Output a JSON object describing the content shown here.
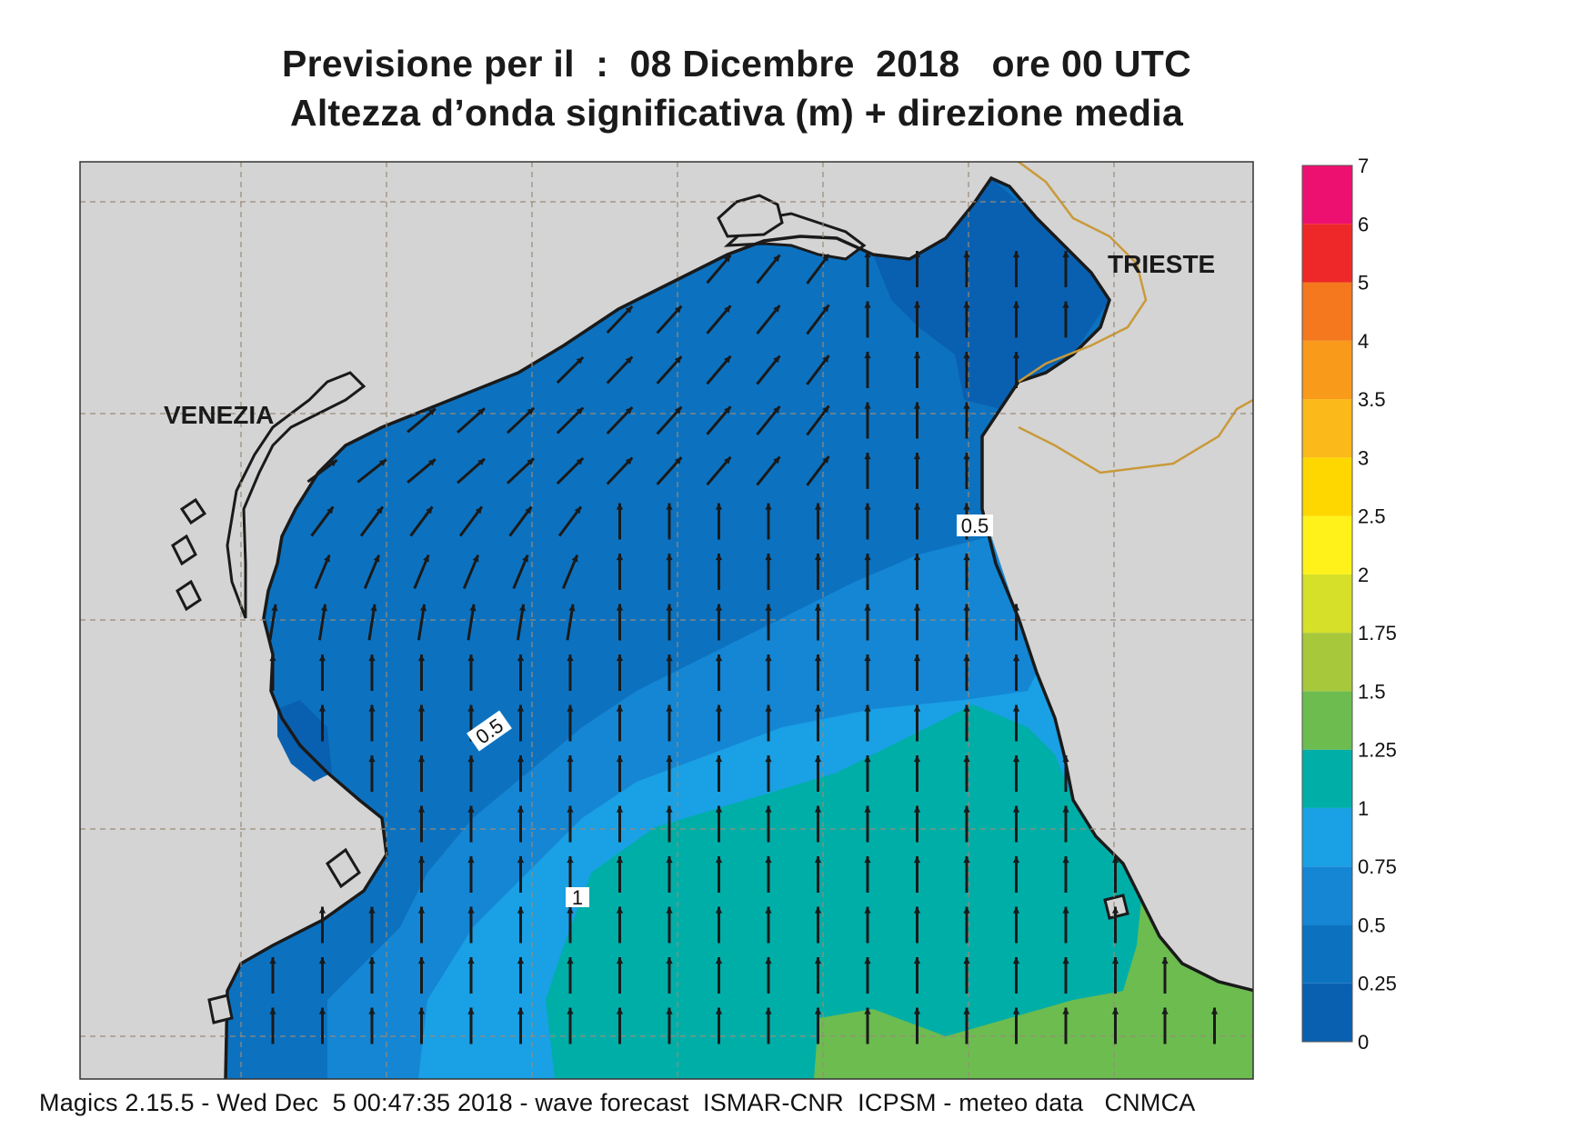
{
  "title": {
    "line1": "Previsione per il  :  08 Dicembre  2018   ore 00 UTC",
    "line2": "Altezza d’onda significativa (m) + direzione media"
  },
  "footer": "Magics 2.15.5 - Wed Dec  5 00:47:35 2018 - wave forecast  ISMAR-CNR  ICPSM - meteo data   CNMCA",
  "places": [
    {
      "name": "VENEZIA",
      "id": "venezia"
    },
    {
      "name": "TRIESTE",
      "id": "trieste"
    }
  ],
  "contour_labels": [
    "0.5",
    "0.5",
    "1"
  ],
  "colorbar": {
    "levels": [
      "0",
      "0.25",
      "0.5",
      "0.75",
      "1",
      "1.25",
      "1.5",
      "1.75",
      "2",
      "2.5",
      "3",
      "3.5",
      "4",
      "5",
      "6",
      "7"
    ],
    "colors": [
      "#0a60b0",
      "#0c72c0",
      "#1486d4",
      "#1aa0e4",
      "#00aea8",
      "#6cbc50",
      "#a8c83c",
      "#d6e028",
      "#fff21a",
      "#ffd700",
      "#fbb91a",
      "#fa9a1a",
      "#f5781e",
      "#ee2828",
      "#ee1070"
    ]
  },
  "colors": {
    "land": "#d4d4d4",
    "coast": "#1a1a1a",
    "border": "#c99a3a",
    "grid": "#9a8a78",
    "arrow": "#1a1a1a"
  }
}
